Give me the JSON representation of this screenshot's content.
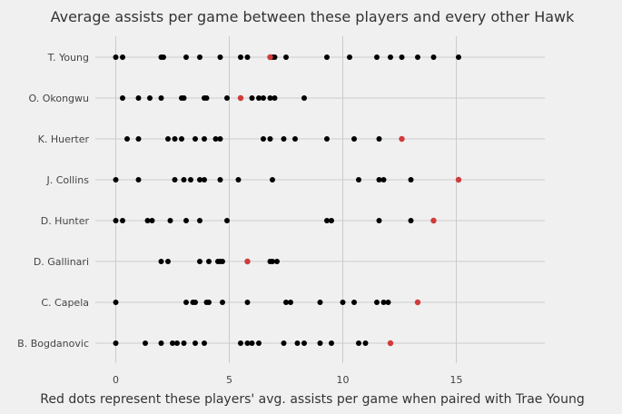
{
  "chart_data": {
    "type": "scatter",
    "title": "Average assists per game between these players and every other Hawk",
    "xlabel": "Red dots represent these players' avg. assists per game when paired with Trae Young",
    "ylabel": "",
    "xlim": [
      -0.9,
      18.9
    ],
    "xticks": [
      0,
      5,
      10,
      15
    ],
    "grid": true,
    "legend": "none",
    "colors": {
      "others": "#000000",
      "with_trae": "#d03b3b"
    },
    "rows": [
      {
        "player": "T. Young",
        "others": [
          0,
          0.3,
          2,
          2.1,
          3.1,
          3.7,
          4.6,
          5.5,
          5.8,
          6.9,
          7.0,
          7.5,
          9.3,
          10.3,
          11.5,
          12.1,
          12.6,
          13.3,
          14.0,
          15.1
        ],
        "with_trae": 6.8
      },
      {
        "player": "O. Okongwu",
        "others": [
          0.3,
          1.0,
          1.5,
          2.0,
          2.9,
          3.0,
          3.9,
          4.0,
          4.9,
          5.5,
          6.0,
          6.3,
          6.5,
          6.8,
          7.0,
          8.3
        ],
        "with_trae": 5.5
      },
      {
        "player": "K. Huerter",
        "others": [
          0.5,
          1.0,
          2.3,
          2.6,
          2.9,
          3.5,
          3.9,
          4.4,
          4.6,
          6.5,
          6.8,
          7.4,
          7.9,
          9.3,
          10.5,
          11.6
        ],
        "with_trae": 12.6
      },
      {
        "player": "J. Collins",
        "others": [
          0,
          1.0,
          2.6,
          3.0,
          3.3,
          3.7,
          3.9,
          4.6,
          5.4,
          6.9,
          10.7,
          11.6,
          11.8,
          13.0
        ],
        "with_trae": 15.1
      },
      {
        "player": "D. Hunter",
        "others": [
          0,
          0.3,
          1.4,
          1.6,
          2.4,
          3.1,
          3.7,
          4.9,
          9.3,
          9.5,
          11.6,
          13.0
        ],
        "with_trae": 14.0
      },
      {
        "player": "D. Gallinari",
        "others": [
          2.0,
          2.3,
          3.7,
          4.1,
          4.5,
          4.6,
          4.7,
          5.8,
          6.8,
          6.9,
          7.1
        ],
        "with_trae": 5.8
      },
      {
        "player": "C. Capela",
        "others": [
          0,
          3.1,
          3.4,
          3.5,
          4.0,
          4.1,
          4.7,
          5.8,
          7.5,
          7.7,
          9.0,
          10.0,
          10.5,
          11.5,
          11.8,
          12.0
        ],
        "with_trae": 13.3
      },
      {
        "player": "B. Bogdanovic",
        "others": [
          0,
          1.3,
          2.0,
          2.5,
          2.7,
          3.0,
          3.5,
          3.9,
          5.5,
          5.8,
          6.0,
          6.3,
          7.4,
          8.0,
          8.3,
          9.0,
          9.5,
          10.7,
          11.0
        ],
        "with_trae": 12.1
      }
    ]
  }
}
